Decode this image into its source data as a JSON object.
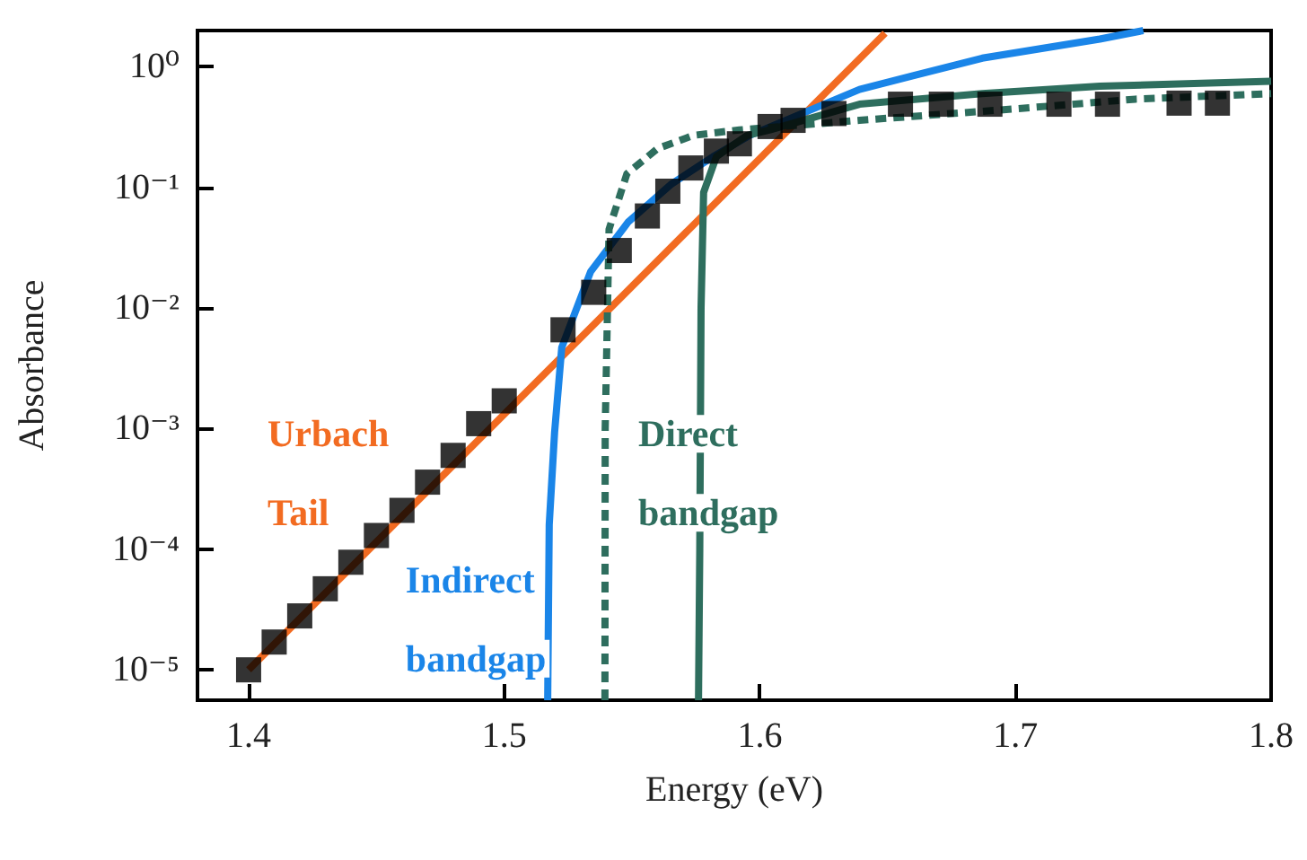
{
  "chart_data": {
    "type": "scatter",
    "xlabel": "Energy (eV)",
    "ylabel": "Absorbance",
    "log": "y",
    "grid": false,
    "legend": false,
    "xlim": [
      1.38,
      1.8
    ],
    "xticks": [
      1.4,
      1.5,
      1.6,
      1.7,
      1.8
    ],
    "ylim": [
      5.6e-06,
      2
    ],
    "yticks": [
      {
        "value": 1,
        "label": "10⁰"
      },
      {
        "value": 0.1,
        "label": "10⁻¹"
      },
      {
        "value": 0.01,
        "label": "10⁻²"
      },
      {
        "value": 0.001,
        "label": "10⁻³"
      },
      {
        "value": 0.0001,
        "label": "10⁻⁴"
      },
      {
        "value": 1e-05,
        "label": "10⁻⁵"
      }
    ],
    "series": [
      {
        "marker": "square",
        "color": "#000000",
        "x": [
          1.4,
          1.41,
          1.42,
          1.43,
          1.44,
          1.45,
          1.46,
          1.47,
          1.48,
          1.49,
          1.5,
          1.523,
          1.535,
          1.545,
          1.556,
          1.564,
          1.573,
          1.583,
          1.592,
          1.604,
          1.613,
          1.629,
          1.655,
          1.671,
          1.69,
          1.717,
          1.736,
          1.764,
          1.779
        ],
        "values": [
          1e-05,
          1.7e-05,
          2.8e-05,
          4.7e-05,
          7.8e-05,
          0.00013,
          0.00021,
          0.00036,
          0.0006,
          0.0011,
          0.0017,
          0.0066,
          0.0135,
          0.03,
          0.058,
          0.093,
          0.145,
          0.2,
          0.23,
          0.32,
          0.36,
          0.41,
          0.49,
          0.49,
          0.49,
          0.49,
          0.49,
          0.5,
          0.5
        ]
      },
      {
        "type": "line",
        "name": "Urbach Tail",
        "color": "#f26b21",
        "marker": "none",
        "line_style": "solid",
        "x": [
          1.4,
          1.649
        ],
        "values": [
          1e-05,
          1.9
        ]
      },
      {
        "type": "line",
        "name": "Indirect bandgap",
        "color": "#1a85e8",
        "marker": "none",
        "line_style": "solid",
        "x": [
          1.517,
          1.5176,
          1.5197,
          1.5225,
          1.5338,
          1.5486,
          1.5655,
          1.5817,
          1.596,
          1.639,
          1.687,
          1.733,
          1.75
        ],
        "values": [
          5.6e-06,
          0.00016,
          0.00093,
          0.0047,
          0.02,
          0.052,
          0.107,
          0.18,
          0.27,
          0.65,
          1.18,
          1.7,
          2
        ]
      },
      {
        "type": "line",
        "name": "Direct bandgap",
        "color": "#2e6e5e",
        "marker": "none",
        "line_style": "solid",
        "x": [
          1.576,
          1.5765,
          1.577,
          1.578,
          1.583,
          1.595,
          1.604,
          1.639,
          1.687,
          1.733,
          1.8
        ],
        "values": [
          5.6e-06,
          0.0001,
          0.01,
          0.091,
          0.18,
          0.27,
          0.3,
          0.49,
          0.6,
          0.69,
          0.76
        ]
      },
      {
        "type": "line",
        "color": "#2e6e5e",
        "marker": "none",
        "line_style": "dashed",
        "x": [
          1.5394,
          1.5395,
          1.541,
          1.548,
          1.56,
          1.574,
          1.592,
          1.639,
          1.701,
          1.747,
          1.8
        ],
        "values": [
          5.6e-06,
          0.001,
          0.045,
          0.13,
          0.21,
          0.27,
          0.3,
          0.36,
          0.45,
          0.54,
          0.6
        ]
      }
    ]
  }
}
